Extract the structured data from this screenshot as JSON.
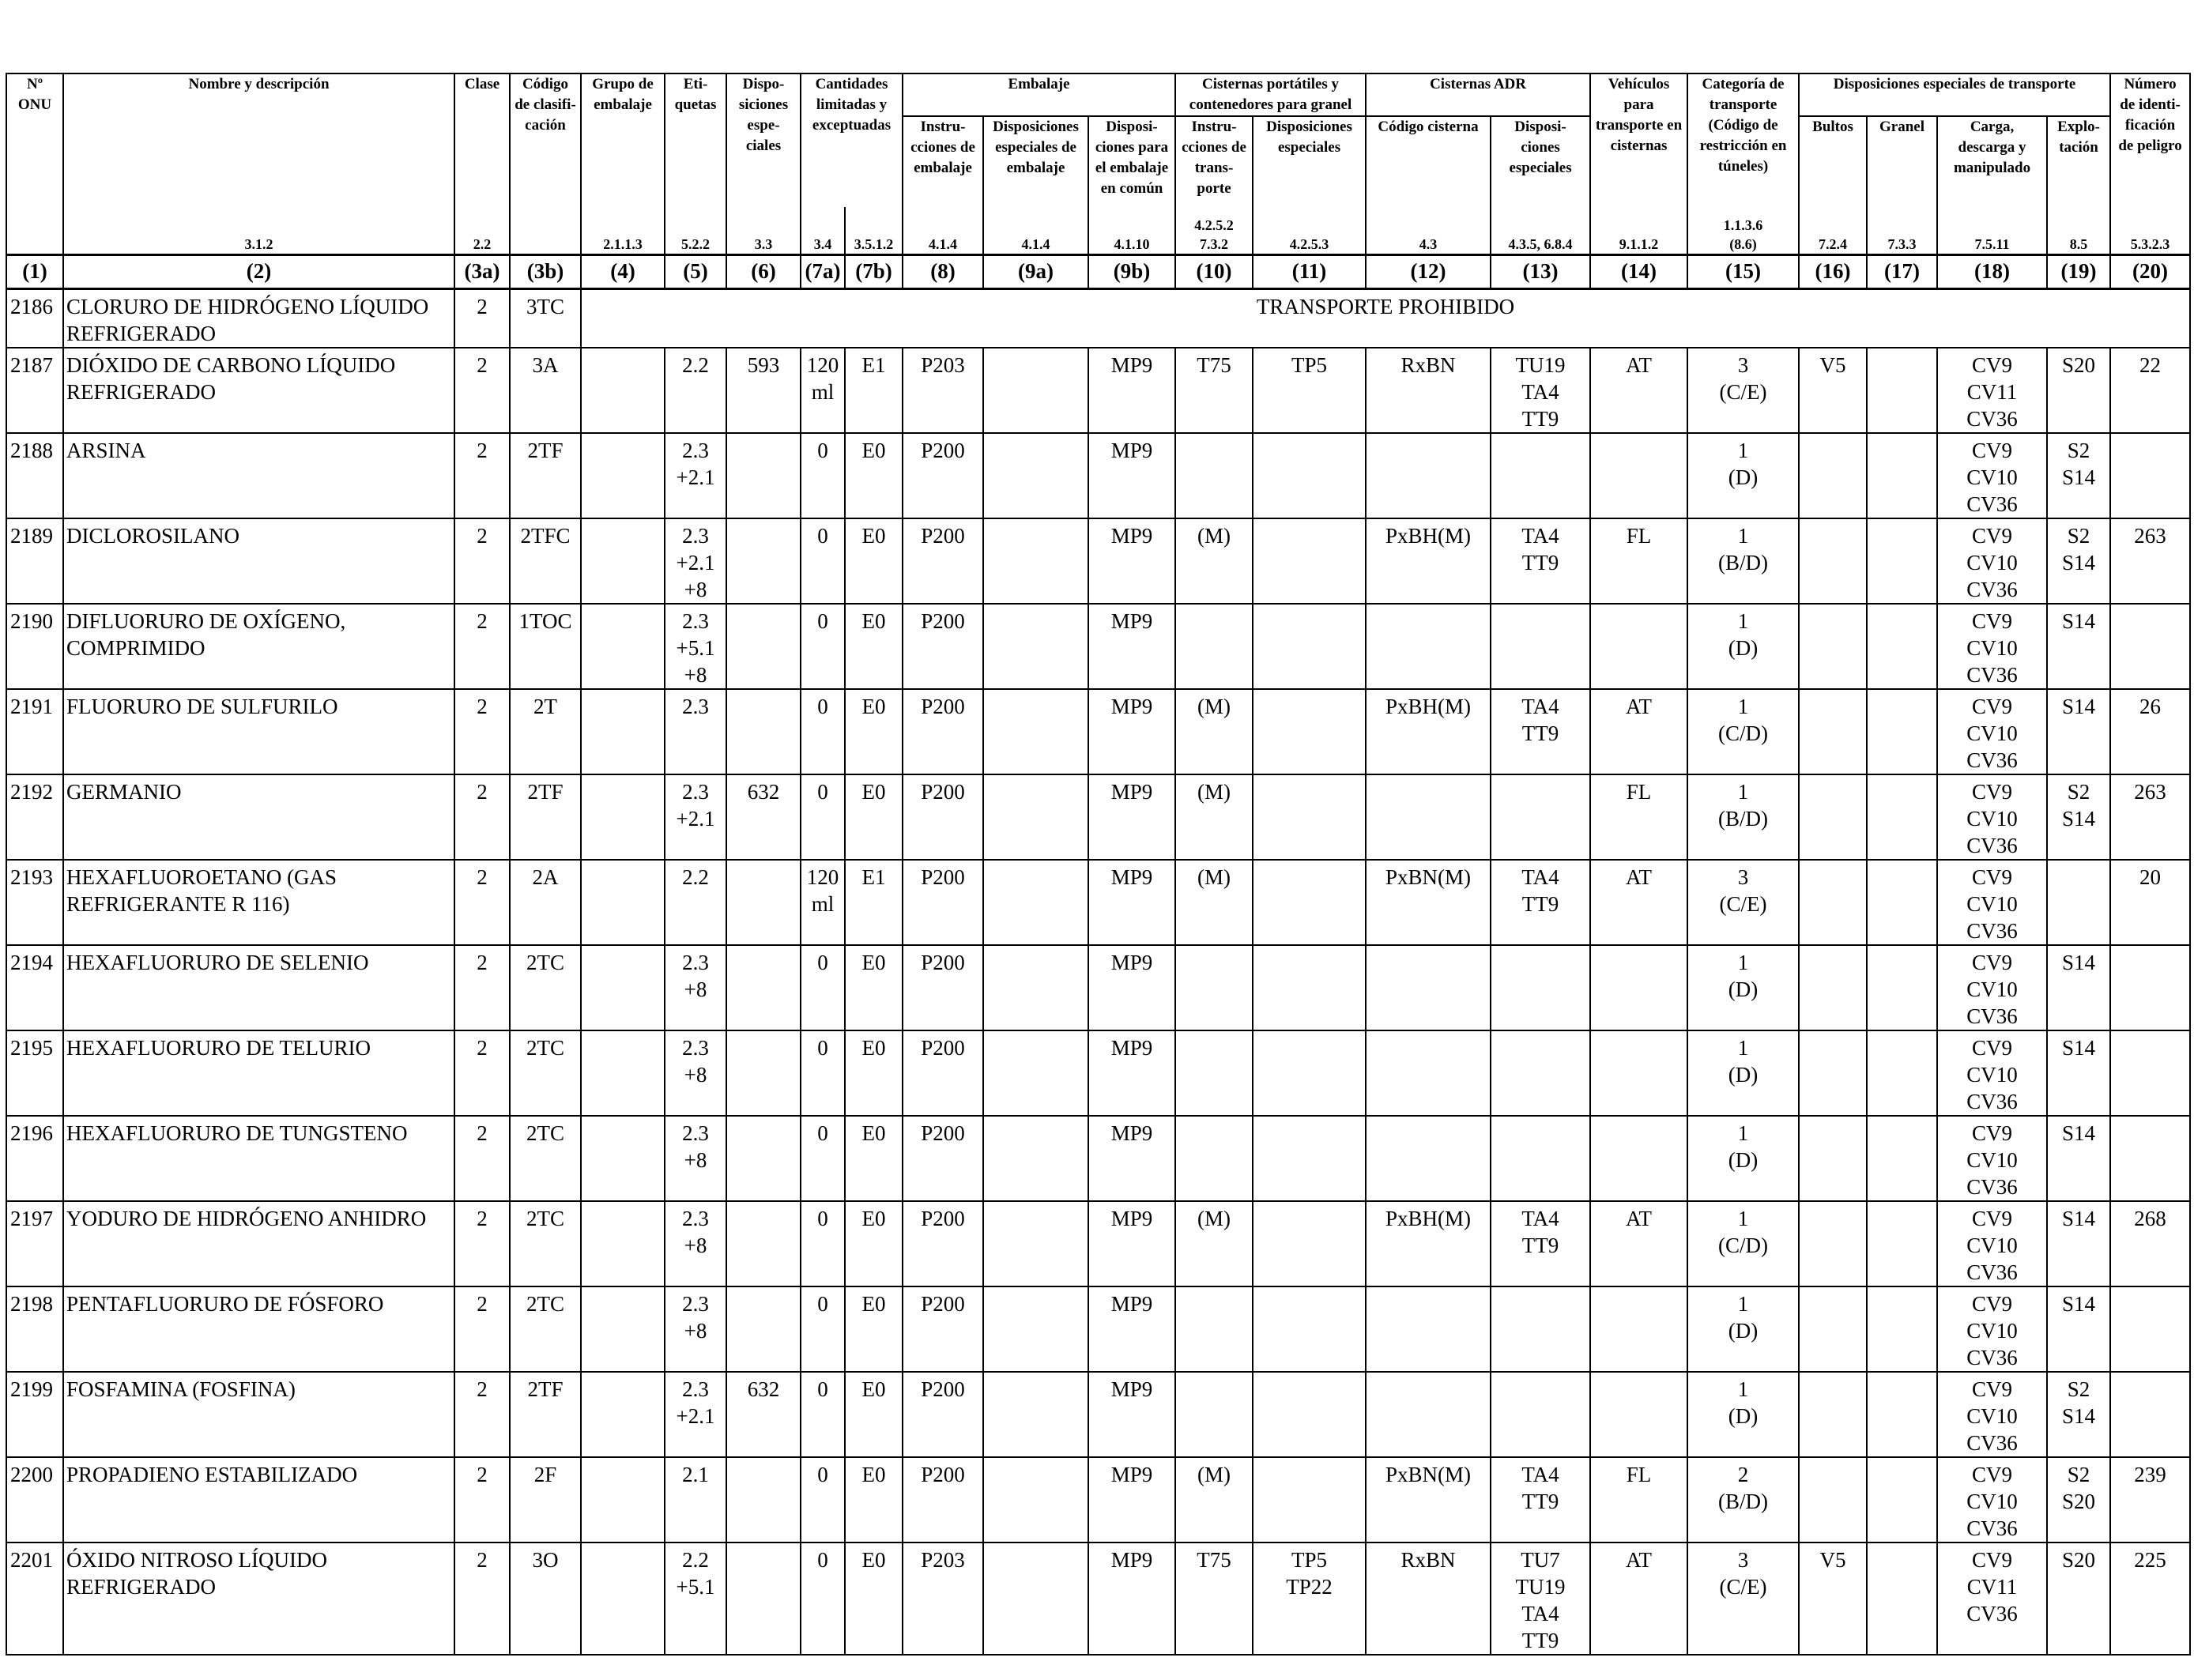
{
  "columns": [
    {
      "id": "un",
      "header": "Nº\nONU",
      "ref": "",
      "num": "(1)"
    },
    {
      "id": "name",
      "header": "Nombre y descripción",
      "ref": "3.1.2",
      "num": "(2)"
    },
    {
      "id": "clase",
      "header": "Clase",
      "ref": "2.2",
      "num": "(3a)"
    },
    {
      "id": "codigo",
      "header": "Código\nde clasifi-\ncación",
      "ref": "",
      "num": "(3b)"
    },
    {
      "id": "grupo",
      "header": "Grupo de\nembalaje",
      "ref": "2.1.1.3",
      "num": "(4)"
    },
    {
      "id": "etiq",
      "header": "Eti-\nquetas",
      "ref": "5.2.2",
      "num": "(5)"
    },
    {
      "id": "dispesp",
      "header": "Dispo-\nsiciones\nespe-\nciales",
      "ref": "3.3",
      "num": "(6)"
    },
    {
      "id": "cl7a",
      "header": "",
      "ref": "3.4",
      "num": "(7a)"
    },
    {
      "id": "cl7b",
      "header": "",
      "ref": "3.5.1.2",
      "num": "(7b)"
    },
    {
      "id": "emb8",
      "header": "Instru-\ncciones de\nembalaje",
      "ref": "4.1.4",
      "num": "(8)"
    },
    {
      "id": "emb9a",
      "header": "Disposiciones\nespeciales de\nembalaje",
      "ref": "4.1.4",
      "num": "(9a)"
    },
    {
      "id": "emb9b",
      "header": "Disposi-\nciones para\nel embalaje\nen común",
      "ref": "4.1.10",
      "num": "(9b)"
    },
    {
      "id": "cp10",
      "header": "Instru-\ncciones de\ntrans-\nporte",
      "ref": "4.2.5.2\n7.3.2",
      "num": "(10)"
    },
    {
      "id": "cp11",
      "header": "Disposiciones\nespeciales",
      "ref": "4.2.5.3",
      "num": "(11)"
    },
    {
      "id": "adr12",
      "header": "Código cisterna",
      "ref": "4.3",
      "num": "(12)"
    },
    {
      "id": "adr13",
      "header": "Disposi-\nciones\nespeciales",
      "ref": "4.3.5, 6.8.4",
      "num": "(13)"
    },
    {
      "id": "veh14",
      "header": "Vehículos\npara\ntransporte en\ncisternas",
      "ref": "9.1.1.2",
      "num": "(14)"
    },
    {
      "id": "cat15",
      "header": "Categoría de\ntransporte\n(Código de\nrestricción en\ntúneles)",
      "ref": "1.1.3.6\n(8.6)",
      "num": "(15)"
    },
    {
      "id": "d16",
      "header": "Bultos",
      "ref": "7.2.4",
      "num": "(16)"
    },
    {
      "id": "d17",
      "header": "Granel",
      "ref": "7.3.3",
      "num": "(17)"
    },
    {
      "id": "d18",
      "header": "Carga,\ndescarga y\nmanipulado",
      "ref": "7.5.11",
      "num": "(18)"
    },
    {
      "id": "d19",
      "header": "Explo-\ntación",
      "ref": "8.5",
      "num": "(19)"
    },
    {
      "id": "num20",
      "header": "Número\nde identi-\nficación\nde peligro",
      "ref": "5.3.2.3",
      "num": "(20)"
    }
  ],
  "groups": {
    "cantidades": "Cantidades\nlimitadas y\nexceptuadas",
    "embalaje": "Embalaje",
    "cisternas_portatiles": "Cisternas portátiles y\ncontenedores para granel",
    "cisternas_adr": "Cisternas ADR",
    "disp_transporte": "Disposiciones especiales de transporte"
  },
  "first_row": {
    "un": "2186",
    "name": "CLORURO DE HIDRÓGENO LÍQUIDO\nREFRIGERADO",
    "clase": "2",
    "codigo": "3TC",
    "note": "TRANSPORTE PROHIBIDO"
  },
  "rows": [
    [
      "2187",
      "DIÓXIDO DE CARBONO LÍQUIDO\nREFRIGERADO",
      "2",
      "3A",
      "",
      "2.2",
      "593",
      "120\nml",
      "E1",
      "P203",
      "",
      "MP9",
      "T75",
      "TP5",
      "RxBN",
      "TU19\nTA4\nTT9",
      "AT",
      "3\n(C/E)",
      "V5",
      "",
      "CV9\nCV11\nCV36",
      "S20",
      "22"
    ],
    [
      "2188",
      "ARSINA",
      "2",
      "2TF",
      "",
      "2.3\n+2.1",
      "",
      "0",
      "E0",
      "P200",
      "",
      "MP9",
      "",
      "",
      "",
      "",
      "",
      "1\n(D)",
      "",
      "",
      "CV9\nCV10\nCV36",
      "S2\nS14",
      ""
    ],
    [
      "2189",
      "DICLOROSILANO",
      "2",
      "2TFC",
      "",
      "2.3\n+2.1\n+8",
      "",
      "0",
      "E0",
      "P200",
      "",
      "MP9",
      "(M)",
      "",
      "PxBH(M)",
      "TA4\nTT9",
      "FL",
      "1\n(B/D)",
      "",
      "",
      "CV9\nCV10\nCV36",
      "S2\nS14",
      "263"
    ],
    [
      "2190",
      "DIFLUORURO DE OXÍGENO,\nCOMPRIMIDO",
      "2",
      "1TOC",
      "",
      "2.3\n+5.1\n+8",
      "",
      "0",
      "E0",
      "P200",
      "",
      "MP9",
      "",
      "",
      "",
      "",
      "",
      "1\n(D)",
      "",
      "",
      "CV9\nCV10\nCV36",
      "S14",
      ""
    ],
    [
      "2191",
      "FLUORURO DE SULFURILO",
      "2",
      "2T",
      "",
      "2.3",
      "",
      "0",
      "E0",
      "P200",
      "",
      "MP9",
      "(M)",
      "",
      "PxBH(M)",
      "TA4\nTT9",
      "AT",
      "1\n(C/D)",
      "",
      "",
      "CV9\nCV10\nCV36",
      "S14",
      "26"
    ],
    [
      "2192",
      "GERMANIO",
      "2",
      "2TF",
      "",
      "2.3\n+2.1",
      "632",
      "0",
      "E0",
      "P200",
      "",
      "MP9",
      "(M)",
      "",
      "",
      "",
      "FL",
      "1\n(B/D)",
      "",
      "",
      "CV9\nCV10\nCV36",
      "S2\nS14",
      "263"
    ],
    [
      "2193",
      "HEXAFLUOROETANO (GAS\nREFRIGERANTE R 116)",
      "2",
      "2A",
      "",
      "2.2",
      "",
      "120\nml",
      "E1",
      "P200",
      "",
      "MP9",
      "(M)",
      "",
      "PxBN(M)",
      "TA4\nTT9",
      "AT",
      "3\n(C/E)",
      "",
      "",
      "CV9\nCV10\nCV36",
      "",
      "20"
    ],
    [
      "2194",
      "HEXAFLUORURO DE SELENIO",
      "2",
      "2TC",
      "",
      "2.3\n+8",
      "",
      "0",
      "E0",
      "P200",
      "",
      "MP9",
      "",
      "",
      "",
      "",
      "",
      "1\n(D)",
      "",
      "",
      "CV9\nCV10\nCV36",
      "S14",
      ""
    ],
    [
      "2195",
      "HEXAFLUORURO DE TELURIO",
      "2",
      "2TC",
      "",
      "2.3\n+8",
      "",
      "0",
      "E0",
      "P200",
      "",
      "MP9",
      "",
      "",
      "",
      "",
      "",
      "1\n(D)",
      "",
      "",
      "CV9\nCV10\nCV36",
      "S14",
      ""
    ],
    [
      "2196",
      "HEXAFLUORURO DE TUNGSTENO",
      "2",
      "2TC",
      "",
      "2.3\n+8",
      "",
      "0",
      "E0",
      "P200",
      "",
      "MP9",
      "",
      "",
      "",
      "",
      "",
      "1\n(D)",
      "",
      "",
      "CV9\nCV10\nCV36",
      "S14",
      ""
    ],
    [
      "2197",
      "YODURO DE HIDRÓGENO ANHIDRO",
      "2",
      "2TC",
      "",
      "2.3\n+8",
      "",
      "0",
      "E0",
      "P200",
      "",
      "MP9",
      "(M)",
      "",
      "PxBH(M)",
      "TA4\nTT9",
      "AT",
      "1\n(C/D)",
      "",
      "",
      "CV9\nCV10\nCV36",
      "S14",
      "268"
    ],
    [
      "2198",
      "PENTAFLUORURO DE FÓSFORO",
      "2",
      "2TC",
      "",
      "2.3\n+8",
      "",
      "0",
      "E0",
      "P200",
      "",
      "MP9",
      "",
      "",
      "",
      "",
      "",
      "1\n(D)",
      "",
      "",
      "CV9\nCV10\nCV36",
      "S14",
      ""
    ],
    [
      "2199",
      "FOSFAMINA (FOSFINA)",
      "2",
      "2TF",
      "",
      "2.3\n+2.1",
      "632",
      "0",
      "E0",
      "P200",
      "",
      "MP9",
      "",
      "",
      "",
      "",
      "",
      "1\n(D)",
      "",
      "",
      "CV9\nCV10\nCV36",
      "S2\nS14",
      ""
    ],
    [
      "2200",
      "PROPADIENO ESTABILIZADO",
      "2",
      "2F",
      "",
      "2.1",
      "",
      "0",
      "E0",
      "P200",
      "",
      "MP9",
      "(M)",
      "",
      "PxBN(M)",
      "TA4\nTT9",
      "FL",
      "2\n(B/D)",
      "",
      "",
      "CV9\nCV10\nCV36",
      "S2\nS20",
      "239"
    ],
    [
      "2201",
      "ÓXIDO NITROSO LÍQUIDO\nREFRIGERADO",
      "2",
      "3O",
      "",
      "2.2\n+5.1",
      "",
      "0",
      "E0",
      "P203",
      "",
      "MP9",
      "T75",
      "TP5\nTP22",
      "RxBN",
      "TU7 TU19\nTA4\nTT9",
      "AT",
      "3\n(C/E)",
      "V5",
      "",
      "CV9\nCV11\nCV36",
      "S20",
      "225"
    ]
  ]
}
